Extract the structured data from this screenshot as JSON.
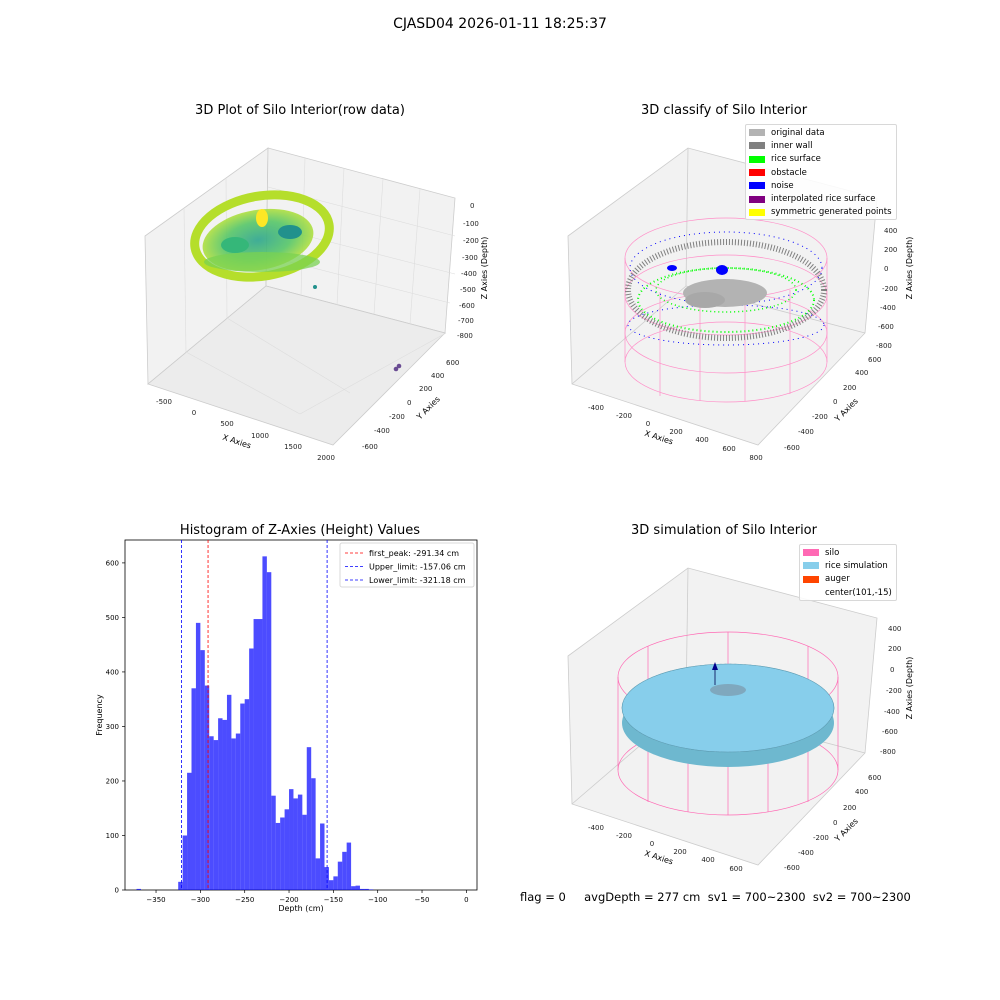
{
  "figure": {
    "title": "CJASD04 2026-01-11 18:25:37",
    "footer": "flag = 0     avgDepth = 277 cm  sv1 = 700~2300  sv2 = 700~2300"
  },
  "panels": {
    "raw": {
      "title": "3D Plot of Silo Interior(row data)",
      "xlabel": "X Axies",
      "ylabel": "Y Axies",
      "zlabel": "Z Axies (Depth)",
      "xticks": [
        "-500",
        "0",
        "500",
        "1000",
        "1500",
        "2000"
      ],
      "yticks": [
        "600",
        "400",
        "200",
        "0",
        "-200",
        "-400",
        "-600"
      ],
      "zticks": [
        "0",
        "-100",
        "-200",
        "-300",
        "-400",
        "-500",
        "-600",
        "-700",
        "-800"
      ]
    },
    "classify": {
      "title": "3D classify of Silo Interior",
      "xlabel": "X Axies",
      "ylabel": "Y Axies",
      "zlabel": "Z Axies (Depth)",
      "xticks": [
        "-400",
        "-200",
        "0",
        "200",
        "400",
        "600",
        "800"
      ],
      "yticks": [
        "600",
        "400",
        "200",
        "0",
        "-200",
        "-400",
        "-600"
      ],
      "zticks": [
        "400",
        "200",
        "0",
        "-200",
        "-400",
        "-600",
        "-800"
      ],
      "legend": [
        {
          "label": "original data",
          "color": "#b3b3b3"
        },
        {
          "label": "inner wall",
          "color": "#808080"
        },
        {
          "label": "rice surface",
          "color": "#00ff00"
        },
        {
          "label": "obstacle",
          "color": "#ff0000"
        },
        {
          "label": "noise",
          "color": "#0000ff"
        },
        {
          "label": "interpolated rice surface",
          "color": "#800080"
        },
        {
          "label": "symmetric generated points",
          "color": "#ffff00"
        }
      ]
    },
    "simulation": {
      "title": "3D simulation of Silo Interior",
      "xlabel": "X Axies",
      "ylabel": "Y Axies",
      "zlabel": "Z Axies (Depth)",
      "xticks": [
        "-400",
        "-200",
        "0",
        "200",
        "400",
        "600"
      ],
      "yticks": [
        "600",
        "400",
        "200",
        "0",
        "-200",
        "-400",
        "-600"
      ],
      "zticks": [
        "400",
        "200",
        "0",
        "-200",
        "-400",
        "-600",
        "-800"
      ],
      "legend": [
        {
          "label": "silo",
          "color": "#ff69b4"
        },
        {
          "label": "rice simulation",
          "color": "#87ceeb"
        },
        {
          "label": "auger",
          "color": "#ff4500"
        },
        {
          "label": "center(101,-15)",
          "color": "#ffffff"
        }
      ]
    }
  },
  "chart_data": [
    {
      "type": "bar",
      "title": "Histogram of Z-Axies (Height) Values",
      "xlabel": "Depth (cm)",
      "ylabel": "Frequency",
      "xlim": [
        -385,
        12
      ],
      "ylim": [
        0,
        642
      ],
      "xticks": [
        -350,
        -300,
        -250,
        -200,
        -150,
        -100,
        -50,
        0
      ],
      "yticks": [
        0,
        100,
        200,
        300,
        400,
        500,
        600
      ],
      "bar_color": "#0000ff",
      "bin_start": -325,
      "bin_width": 5,
      "outlier_bins": [
        {
          "x0": -372,
          "x1": -367,
          "value": 2
        }
      ],
      "values": [
        15,
        100,
        215,
        370,
        490,
        440,
        375,
        282,
        275,
        315,
        312,
        358,
        278,
        287,
        342,
        350,
        443,
        497,
        497,
        612,
        583,
        173,
        123,
        133,
        148,
        185,
        168,
        175,
        138,
        262,
        205,
        58,
        122,
        42,
        18,
        25,
        52,
        70,
        87,
        7,
        8,
        2,
        2,
        1
      ],
      "lines": [
        {
          "label": "first_peak: -291.34 cm",
          "x": -291.34,
          "color": "#ff0000"
        },
        {
          "label": "Upper_limit: -157.06 cm",
          "x": -157.06,
          "color": "#0000ff"
        },
        {
          "label": "Lower_limit: -321.18 cm",
          "x": -321.18,
          "color": "#0000ff"
        }
      ],
      "legend_position": "top-right"
    }
  ]
}
